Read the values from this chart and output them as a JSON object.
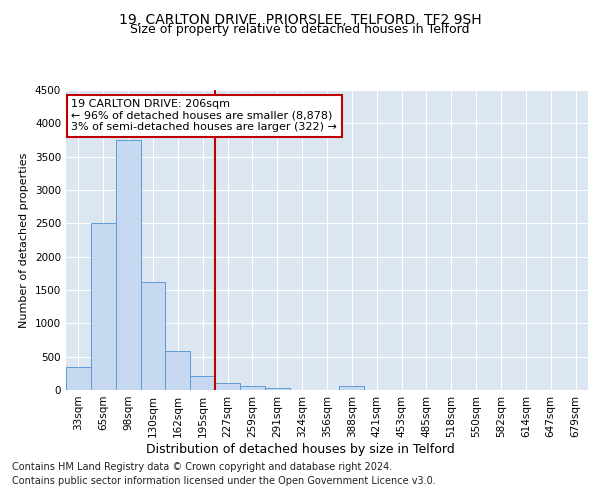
{
  "title1": "19, CARLTON DRIVE, PRIORSLEE, TELFORD, TF2 9SH",
  "title2": "Size of property relative to detached houses in Telford",
  "xlabel": "Distribution of detached houses by size in Telford",
  "ylabel": "Number of detached properties",
  "categories": [
    "33sqm",
    "65sqm",
    "98sqm",
    "130sqm",
    "162sqm",
    "195sqm",
    "227sqm",
    "259sqm",
    "291sqm",
    "324sqm",
    "356sqm",
    "388sqm",
    "421sqm",
    "453sqm",
    "485sqm",
    "518sqm",
    "550sqm",
    "582sqm",
    "614sqm",
    "647sqm",
    "679sqm"
  ],
  "values": [
    350,
    2500,
    3750,
    1620,
    580,
    215,
    110,
    60,
    35,
    0,
    0,
    55,
    0,
    0,
    0,
    0,
    0,
    0,
    0,
    0,
    0
  ],
  "bar_color": "#c6d9f0",
  "bar_edge_color": "#5b9bd5",
  "vline_x": 5.5,
  "vline_color": "#c00000",
  "annotation_line1": "19 CARLTON DRIVE: 206sqm",
  "annotation_line2": "← 96% of detached houses are smaller (8,878)",
  "annotation_line3": "3% of semi-detached houses are larger (322) →",
  "annotation_box_color": "#c00000",
  "ylim": [
    0,
    4500
  ],
  "yticks": [
    0,
    500,
    1000,
    1500,
    2000,
    2500,
    3000,
    3500,
    4000,
    4500
  ],
  "footer1": "Contains HM Land Registry data © Crown copyright and database right 2024.",
  "footer2": "Contains public sector information licensed under the Open Government Licence v3.0.",
  "plot_bg_color": "#dce6f1",
  "title1_fontsize": 10,
  "title2_fontsize": 9,
  "xlabel_fontsize": 9,
  "ylabel_fontsize": 8,
  "tick_fontsize": 7.5,
  "footer_fontsize": 7,
  "annot_fontsize": 8
}
